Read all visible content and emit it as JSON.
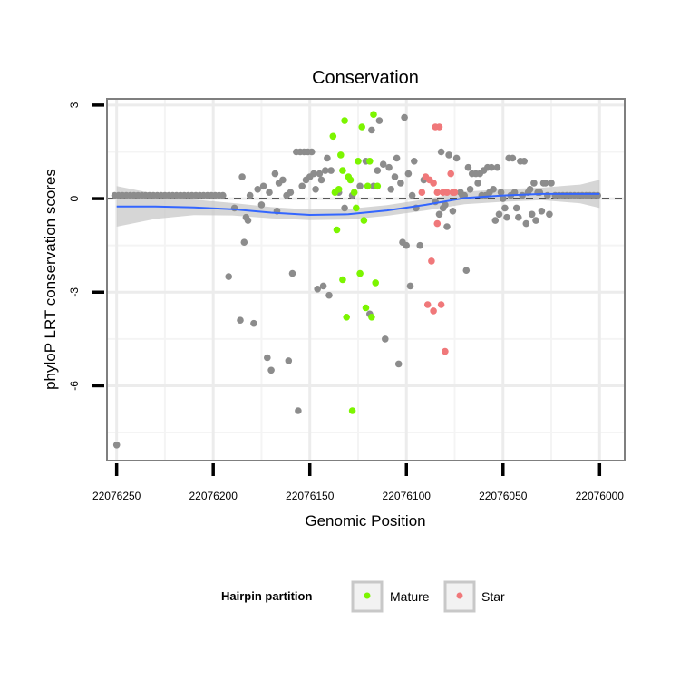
{
  "chart_data": {
    "type": "scatter",
    "title": "Conservation",
    "xlabel": "Genomic Position",
    "ylabel": "phyloP LRT conservation scores",
    "x_reversed": true,
    "xlim": [
      22076255,
      22075987
    ],
    "ylim": [
      -8.4,
      3.2
    ],
    "x_ticks": [
      22076250,
      22076200,
      22076150,
      22076100,
      22076050,
      22076000
    ],
    "x_tick_labels": [
      "22076250",
      "22076200",
      "22076150",
      "22076100",
      "22076050",
      "22076000"
    ],
    "y_ticks": [
      3,
      0,
      -3,
      -6
    ],
    "y_tick_labels": [
      "3",
      "0",
      "-3",
      "-6"
    ],
    "reference_line": {
      "y": 0,
      "style": "dashed"
    },
    "colors": {
      "Other": "#8c8c8c",
      "Mature": "#7cf500",
      "Star": "#f0787a",
      "smooth": "#3366ff",
      "ribbon": "#c8c8c8"
    },
    "legend": {
      "title": "Hairpin partition",
      "position": "bottom",
      "entries": [
        {
          "label": "Mature",
          "color": "#7cf500"
        },
        {
          "label": "Star",
          "color": "#f0787a"
        }
      ]
    },
    "series": [
      {
        "name": "Other",
        "points": [
          [
            22076251,
            0.1
          ],
          [
            22076249,
            0.1
          ],
          [
            22076247,
            0.1
          ],
          [
            22076245,
            0.1
          ],
          [
            22076243,
            0.1
          ],
          [
            22076241,
            0.1
          ],
          [
            22076239,
            0.1
          ],
          [
            22076237,
            0.1
          ],
          [
            22076235,
            0.1
          ],
          [
            22076233,
            0.1
          ],
          [
            22076231,
            0.1
          ],
          [
            22076229,
            0.1
          ],
          [
            22076227,
            0.1
          ],
          [
            22076225,
            0.1
          ],
          [
            22076223,
            0.1
          ],
          [
            22076221,
            0.1
          ],
          [
            22076219,
            0.1
          ],
          [
            22076217,
            0.1
          ],
          [
            22076215,
            0.1
          ],
          [
            22076213,
            0.1
          ],
          [
            22076211,
            0.1
          ],
          [
            22076209,
            0.1
          ],
          [
            22076207,
            0.1
          ],
          [
            22076205,
            0.1
          ],
          [
            22076203,
            0.1
          ],
          [
            22076201,
            0.1
          ],
          [
            22076199,
            0.1
          ],
          [
            22076197,
            0.1
          ],
          [
            22076195,
            0.1
          ],
          [
            22076250,
            -7.9
          ],
          [
            22076192,
            -2.5
          ],
          [
            22076189,
            -0.3
          ],
          [
            22076186,
            -3.9
          ],
          [
            22076185,
            0.7
          ],
          [
            22076184,
            -1.4
          ],
          [
            22076183,
            -0.6
          ],
          [
            22076182,
            -0.7
          ],
          [
            22076181,
            0.1
          ],
          [
            22076179,
            -4.0
          ],
          [
            22076177,
            0.3
          ],
          [
            22076175,
            -0.2
          ],
          [
            22076174,
            0.4
          ],
          [
            22076172,
            -5.1
          ],
          [
            22076171,
            0.2
          ],
          [
            22076170,
            -5.5
          ],
          [
            22076168,
            0.8
          ],
          [
            22076167,
            -0.4
          ],
          [
            22076166,
            0.5
          ],
          [
            22076164,
            0.6
          ],
          [
            22076162,
            0.1
          ],
          [
            22076161,
            -5.2
          ],
          [
            22076160,
            0.2
          ],
          [
            22076159,
            -2.4
          ],
          [
            22076157,
            1.5
          ],
          [
            22076156,
            -6.8
          ],
          [
            22076155,
            1.5
          ],
          [
            22076154,
            0.4
          ],
          [
            22076153,
            1.5
          ],
          [
            22076152,
            0.6
          ],
          [
            22076151,
            1.5
          ],
          [
            22076150,
            0.7
          ],
          [
            22076149,
            1.5
          ],
          [
            22076148,
            0.8
          ],
          [
            22076147,
            0.3
          ],
          [
            22076146,
            -2.9
          ],
          [
            22076145,
            0.8
          ],
          [
            22076144,
            0.6
          ],
          [
            22076143,
            -2.8
          ],
          [
            22076142,
            0.9
          ],
          [
            22076141,
            1.3
          ],
          [
            22076140,
            -3.1
          ],
          [
            22076139,
            0.9
          ],
          [
            22076135,
            0.2
          ],
          [
            22076132,
            -0.3
          ],
          [
            22076128,
            0.1
          ],
          [
            22076124,
            0.4
          ],
          [
            22076121,
            1.2
          ],
          [
            22076119,
            -3.7
          ],
          [
            22076118,
            2.2
          ],
          [
            22076117,
            0.4
          ],
          [
            22076115,
            0.9
          ],
          [
            22076114,
            2.5
          ],
          [
            22076112,
            1.1
          ],
          [
            22076111,
            -4.5
          ],
          [
            22076109,
            1.0
          ],
          [
            22076108,
            0.3
          ],
          [
            22076106,
            0.7
          ],
          [
            22076105,
            1.3
          ],
          [
            22076104,
            -5.3
          ],
          [
            22076103,
            0.5
          ],
          [
            22076102,
            -1.4
          ],
          [
            22076101,
            2.6
          ],
          [
            22076100,
            -1.5
          ],
          [
            22076099,
            0.8
          ],
          [
            22076098,
            -2.8
          ],
          [
            22076097,
            0.1
          ],
          [
            22076096,
            1.2
          ],
          [
            22076095,
            -0.3
          ],
          [
            22076093,
            -1.5
          ],
          [
            22076091,
            0.6
          ],
          [
            22076085,
            -0.1
          ],
          [
            22076083,
            -0.5
          ],
          [
            22076082,
            1.5
          ],
          [
            22076081,
            -0.3
          ],
          [
            22076080,
            -0.2
          ],
          [
            22076079,
            -0.9
          ],
          [
            22076078,
            1.4
          ],
          [
            22076076,
            -0.4
          ],
          [
            22076074,
            1.3
          ],
          [
            22076072,
            0.2
          ],
          [
            22076071,
            0.1
          ],
          [
            22076070,
            0.1
          ],
          [
            22076069,
            -2.3
          ],
          [
            22076068,
            1.0
          ],
          [
            22076067,
            0.3
          ],
          [
            22076066,
            0.8
          ],
          [
            22076064,
            0.8
          ],
          [
            22076063,
            0.5
          ],
          [
            22076062,
            0.8
          ],
          [
            22076061,
            0.1
          ],
          [
            22076060,
            0.9
          ],
          [
            22076059,
            0.1
          ],
          [
            22076058,
            1.0
          ],
          [
            22076057,
            0.2
          ],
          [
            22076056,
            1.0
          ],
          [
            22076055,
            0.3
          ],
          [
            22076054,
            -0.7
          ],
          [
            22076053,
            1.0
          ],
          [
            22076052,
            -0.5
          ],
          [
            22076051,
            0.2
          ],
          [
            22076050,
            0.0
          ],
          [
            22076049,
            -0.3
          ],
          [
            22076048,
            -0.6
          ],
          [
            22076047,
            1.3
          ],
          [
            22076046,
            0.1
          ],
          [
            22076045,
            1.3
          ],
          [
            22076044,
            0.2
          ],
          [
            22076043,
            -0.3
          ],
          [
            22076042,
            -0.6
          ],
          [
            22076041,
            1.2
          ],
          [
            22076040,
            0.1
          ],
          [
            22076039,
            1.2
          ],
          [
            22076038,
            -0.8
          ],
          [
            22076037,
            0.2
          ],
          [
            22076036,
            0.3
          ],
          [
            22076035,
            -0.5
          ],
          [
            22076034,
            0.5
          ],
          [
            22076033,
            -0.7
          ],
          [
            22076032,
            0.2
          ],
          [
            22076031,
            0.2
          ],
          [
            22076030,
            -0.4
          ],
          [
            22076029,
            0.5
          ],
          [
            22076028,
            0.5
          ],
          [
            22076027,
            0.1
          ],
          [
            22076026,
            -0.5
          ],
          [
            22076025,
            0.5
          ],
          [
            22076023,
            0.1
          ],
          [
            22076021,
            0.1
          ],
          [
            22076019,
            0.1
          ],
          [
            22076017,
            0.1
          ],
          [
            22076015,
            0.1
          ],
          [
            22076013,
            0.1
          ],
          [
            22076011,
            0.1
          ],
          [
            22076009,
            0.1
          ],
          [
            22076007,
            0.1
          ],
          [
            22076005,
            0.1
          ],
          [
            22076003,
            0.1
          ],
          [
            22076001,
            0.1
          ]
        ]
      },
      {
        "name": "Mature",
        "points": [
          [
            22076138,
            2.0
          ],
          [
            22076137,
            0.2
          ],
          [
            22076136,
            -1.0
          ],
          [
            22076135,
            0.3
          ],
          [
            22076134,
            1.4
          ],
          [
            22076133,
            -2.6
          ],
          [
            22076133,
            0.9
          ],
          [
            22076132,
            2.5
          ],
          [
            22076131,
            -3.8
          ],
          [
            22076130,
            0.7
          ],
          [
            22076129,
            0.6
          ],
          [
            22076128,
            -6.8
          ],
          [
            22076127,
            0.2
          ],
          [
            22076126,
            -0.3
          ],
          [
            22076125,
            1.2
          ],
          [
            22076124,
            -2.4
          ],
          [
            22076123,
            2.3
          ],
          [
            22076122,
            -0.7
          ],
          [
            22076121,
            -3.5
          ],
          [
            22076120,
            0.4
          ],
          [
            22076119,
            1.2
          ],
          [
            22076118,
            -3.8
          ],
          [
            22076117,
            2.7
          ],
          [
            22076116,
            -2.7
          ],
          [
            22076115,
            0.4
          ]
        ]
      },
      {
        "name": "Star",
        "points": [
          [
            22076092,
            0.2
          ],
          [
            22076090,
            0.7
          ],
          [
            22076089,
            -3.4
          ],
          [
            22076088,
            0.6
          ],
          [
            22076087,
            -2.0
          ],
          [
            22076086,
            -3.6
          ],
          [
            22076086,
            0.5
          ],
          [
            22076085,
            2.3
          ],
          [
            22076084,
            -0.8
          ],
          [
            22076084,
            0.2
          ],
          [
            22076083,
            2.3
          ],
          [
            22076082,
            -3.4
          ],
          [
            22076081,
            0.2
          ],
          [
            22076080,
            -4.9
          ],
          [
            22076079,
            0.2
          ],
          [
            22076077,
            0.8
          ],
          [
            22076076,
            0.2
          ],
          [
            22076075,
            0.2
          ]
        ]
      }
    ],
    "smooth": {
      "method": "loess",
      "x": [
        22076250,
        22076230,
        22076210,
        22076190,
        22076170,
        22076150,
        22076130,
        22076110,
        22076090,
        22076070,
        22076050,
        22076030,
        22076010,
        22076000
      ],
      "y": [
        -0.25,
        -0.25,
        -0.28,
        -0.34,
        -0.45,
        -0.52,
        -0.5,
        -0.38,
        -0.2,
        0.02,
        0.1,
        0.15,
        0.15,
        0.15
      ],
      "se": [
        0.65,
        0.4,
        0.25,
        0.2,
        0.18,
        0.17,
        0.17,
        0.17,
        0.18,
        0.2,
        0.2,
        0.2,
        0.3,
        0.45
      ]
    }
  }
}
